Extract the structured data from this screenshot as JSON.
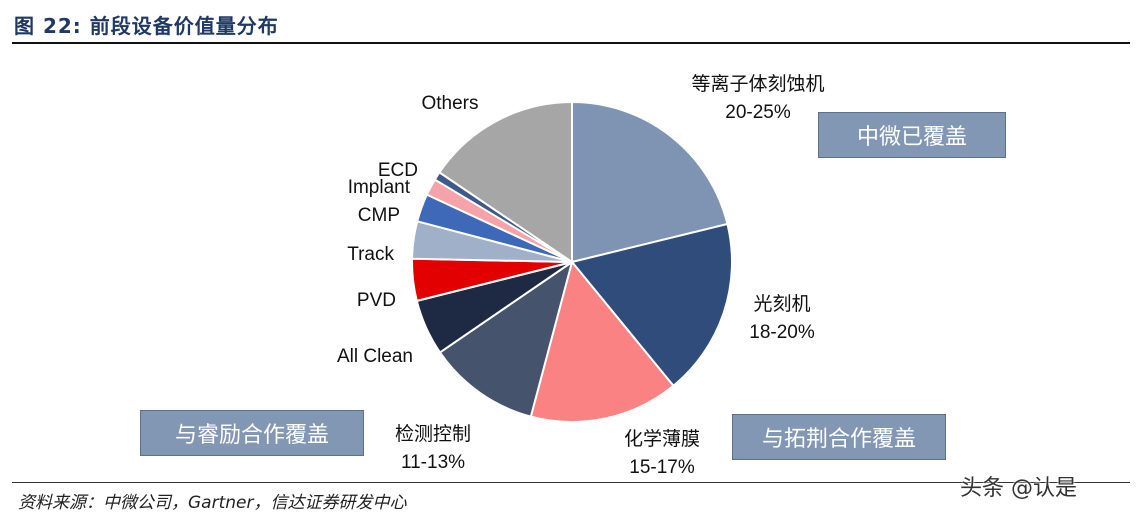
{
  "header": {
    "title": "图 22:  前段设备价值量分布"
  },
  "footer": {
    "source": "资料来源：中微公司，Gartner，信达证券研发中心",
    "watermark": "头条 @认是"
  },
  "tags": {
    "zhongwei": "中微已覆盖",
    "ruili": "与睿励合作覆盖",
    "tuojing": "与拓荆合作覆盖"
  },
  "colors": {
    "etch": "#7f93b3",
    "litho": "#2f4c7a",
    "cvd": "#fb8282",
    "metrology": "#45536c",
    "clean": "#1e2a44",
    "pvd": "#e30000",
    "track": "#9fb0c8",
    "cmp": "#3d69b8",
    "implant": "#f5a3a9",
    "ecd": "#3c5b8a",
    "others": "#a6a6a6"
  },
  "chart_data": {
    "type": "pie",
    "title": "前段设备价值量分布",
    "start": "12 o'clock",
    "direction": "clockwise",
    "slices": [
      {
        "key": "etch",
        "name": "等离子体刻蚀机",
        "label": "20-25%",
        "value": 22.5
      },
      {
        "key": "litho",
        "name": "光刻机",
        "label": "18-20%",
        "value": 19.0
      },
      {
        "key": "cvd",
        "name": "化学薄膜",
        "label": "15-17%",
        "value": 16.0
      },
      {
        "key": "metrology",
        "name": "检测控制",
        "label": "11-13%",
        "value": 12.0
      },
      {
        "key": "clean",
        "name": "All Clean",
        "label": "",
        "value": 6.0
      },
      {
        "key": "pvd",
        "name": "PVD",
        "label": "",
        "value": 4.5
      },
      {
        "key": "track",
        "name": "Track",
        "label": "",
        "value": 4.0
      },
      {
        "key": "cmp",
        "name": "CMP",
        "label": "",
        "value": 3.0
      },
      {
        "key": "implant",
        "name": "Implant",
        "label": "",
        "value": 1.8
      },
      {
        "key": "ecd",
        "name": "ECD",
        "label": "",
        "value": 0.9
      },
      {
        "key": "others",
        "name": "Others",
        "label": "",
        "value": 16.5
      }
    ]
  }
}
